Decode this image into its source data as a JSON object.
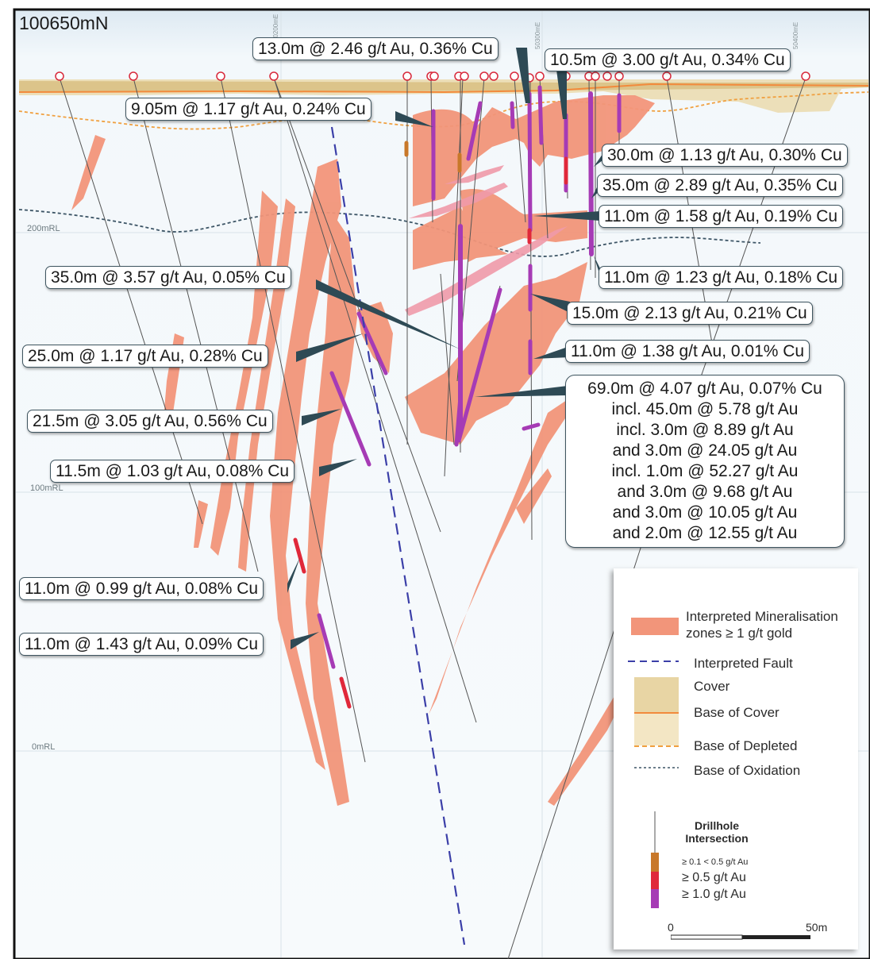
{
  "section": {
    "title": "100650mN",
    "rl_labels": [
      "200mRL",
      "100mRL",
      "0mRL"
    ],
    "easting_labels": [
      "50200mE",
      "50300mE",
      "50400mE"
    ]
  },
  "colors": {
    "mineralisation": "#f2957a",
    "cover": "#e8d5a4",
    "base_of_cover": "#f28a3c",
    "base_of_depleted": "#f0a040",
    "oxidation": "#3d5566",
    "fault": "#3b3fa8",
    "grade_low": "#c8782a",
    "grade_mid": "#e0283a",
    "grade_high": "#a63bb5"
  },
  "intercepts": [
    "13.0m @ 2.46 g/t Au, 0.36% Cu",
    "10.5m @ 3.00 g/t Au, 0.34% Cu",
    "9.05m @ 1.17 g/t Au, 0.24% Cu",
    "30.0m @ 1.13 g/t Au, 0.30% Cu",
    "35.0m @ 2.89 g/t Au, 0.35% Cu",
    "11.0m @ 1.58 g/t Au, 0.19% Cu",
    "35.0m @ 3.57 g/t Au, 0.05% Cu",
    "11.0m @ 1.23 g/t Au, 0.18% Cu",
    "15.0m @ 2.13 g/t Au, 0.21% Cu",
    "25.0m @ 1.17 g/t Au, 0.28% Cu",
    "11.0m @ 1.38 g/t Au, 0.01% Cu",
    "21.5m @ 3.05 g/t Au, 0.56% Cu",
    "11.5m @ 1.03 g/t Au, 0.08% Cu",
    "11.0m @ 0.99 g/t Au, 0.08% Cu",
    "11.0m @ 1.43 g/t Au, 0.09% Cu"
  ],
  "main_intercept": {
    "lines": [
      "69.0m @ 4.07 g/t Au, 0.07% Cu",
      "incl. 45.0m @ 5.78 g/t Au",
      "incl. 3.0m @ 8.89 g/t Au",
      "and 3.0m @ 24.05 g/t Au",
      "incl. 1.0m @ 52.27 g/t Au",
      "and 3.0m @ 9.68 g/t Au",
      "and 3.0m @ 10.05 g/t Au",
      "and 2.0m @ 12.55 g/t Au"
    ]
  },
  "legend": {
    "mineralisation": "Interpreted Mineralisation zones ≥ 1 g/t gold",
    "fault": "Interpreted Fault",
    "cover": "Cover",
    "base_of_cover": "Base of Cover",
    "base_of_depleted": "Base of Depleted",
    "base_of_oxidation": "Base of Oxidation",
    "drillhole_title": "Drillhole Intersection",
    "grade_low": "≥ 0.1 < 0.5 g/t Au",
    "grade_mid": "≥ 0.5 g/t Au",
    "grade_high": "≥ 1.0 g/t Au",
    "scale_start": "0",
    "scale_end": "50m"
  }
}
